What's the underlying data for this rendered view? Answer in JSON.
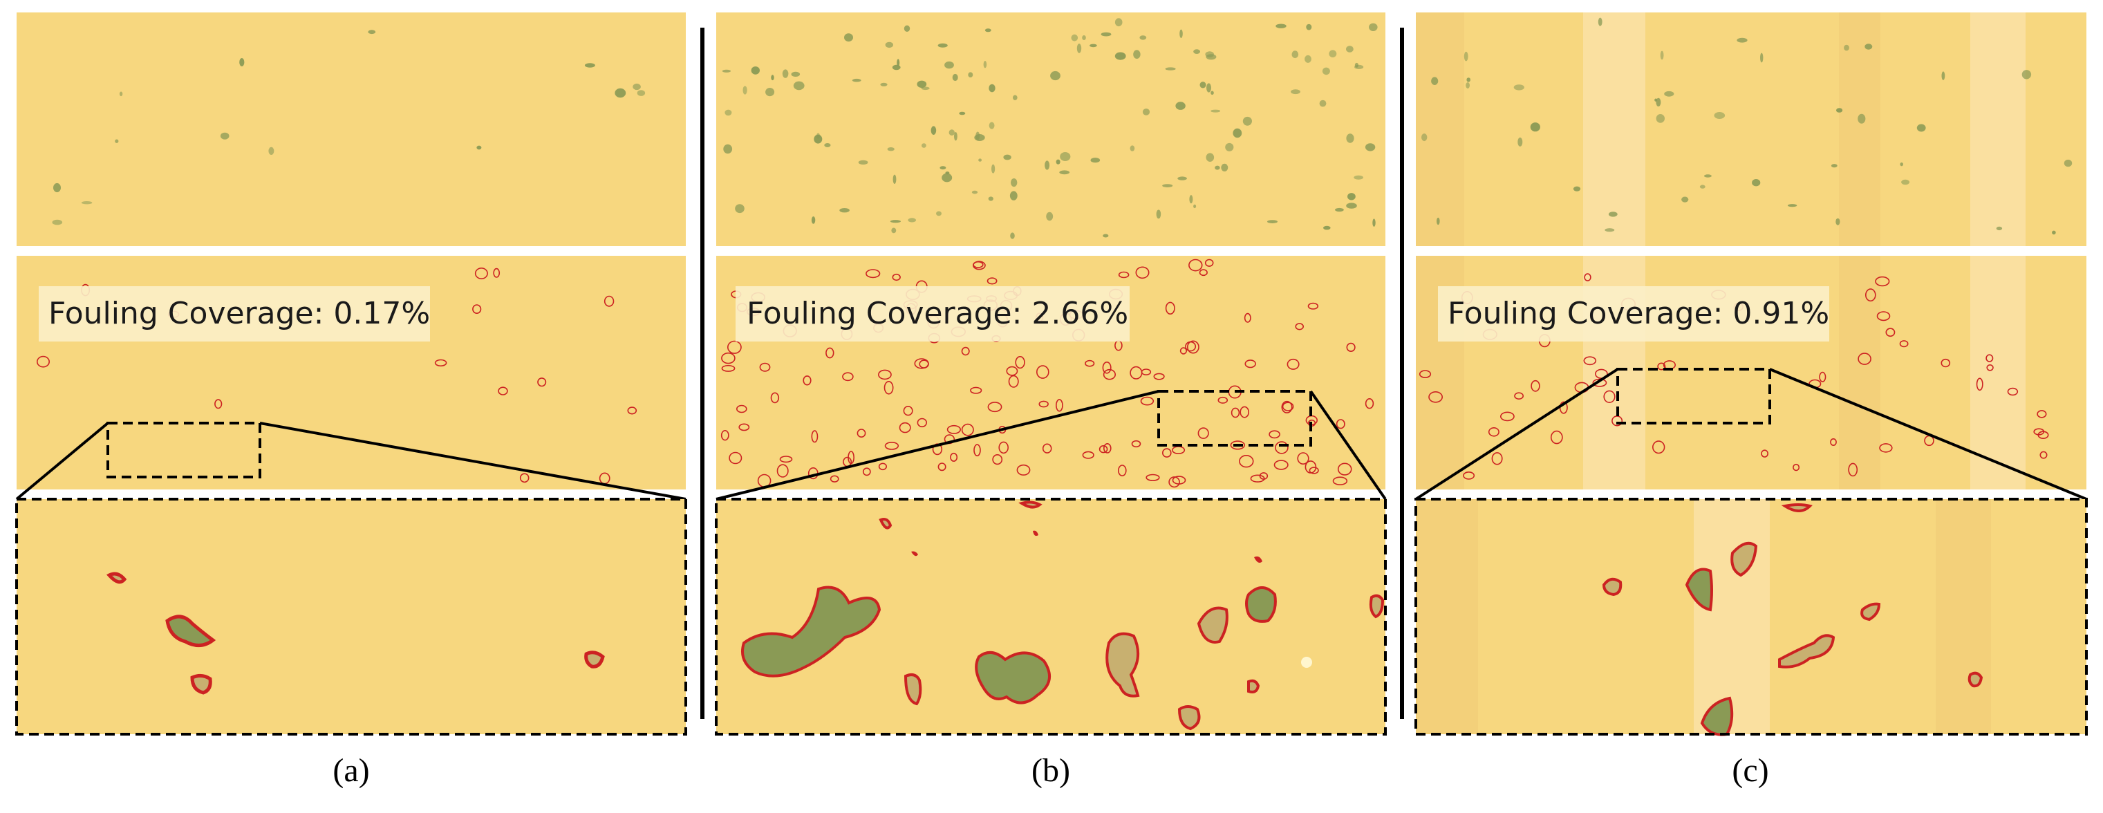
{
  "figure": {
    "panels": [
      {
        "id": "a",
        "caption": "(a)",
        "overlay_label": "Fouling Coverage: 0.17%",
        "coverage_percent": 0.17
      },
      {
        "id": "b",
        "caption": "(b)",
        "overlay_label": "Fouling Coverage: 2.66%",
        "coverage_percent": 2.66
      },
      {
        "id": "c",
        "caption": "(c)",
        "overlay_label": "Fouling Coverage: 0.91%",
        "coverage_percent": 0.91
      }
    ],
    "colors": {
      "surface": "#f7d77f",
      "fouling": "#8a9a55",
      "outline": "#cc2222",
      "label_bg": "#fbf0c8",
      "divider": "#000000"
    }
  }
}
